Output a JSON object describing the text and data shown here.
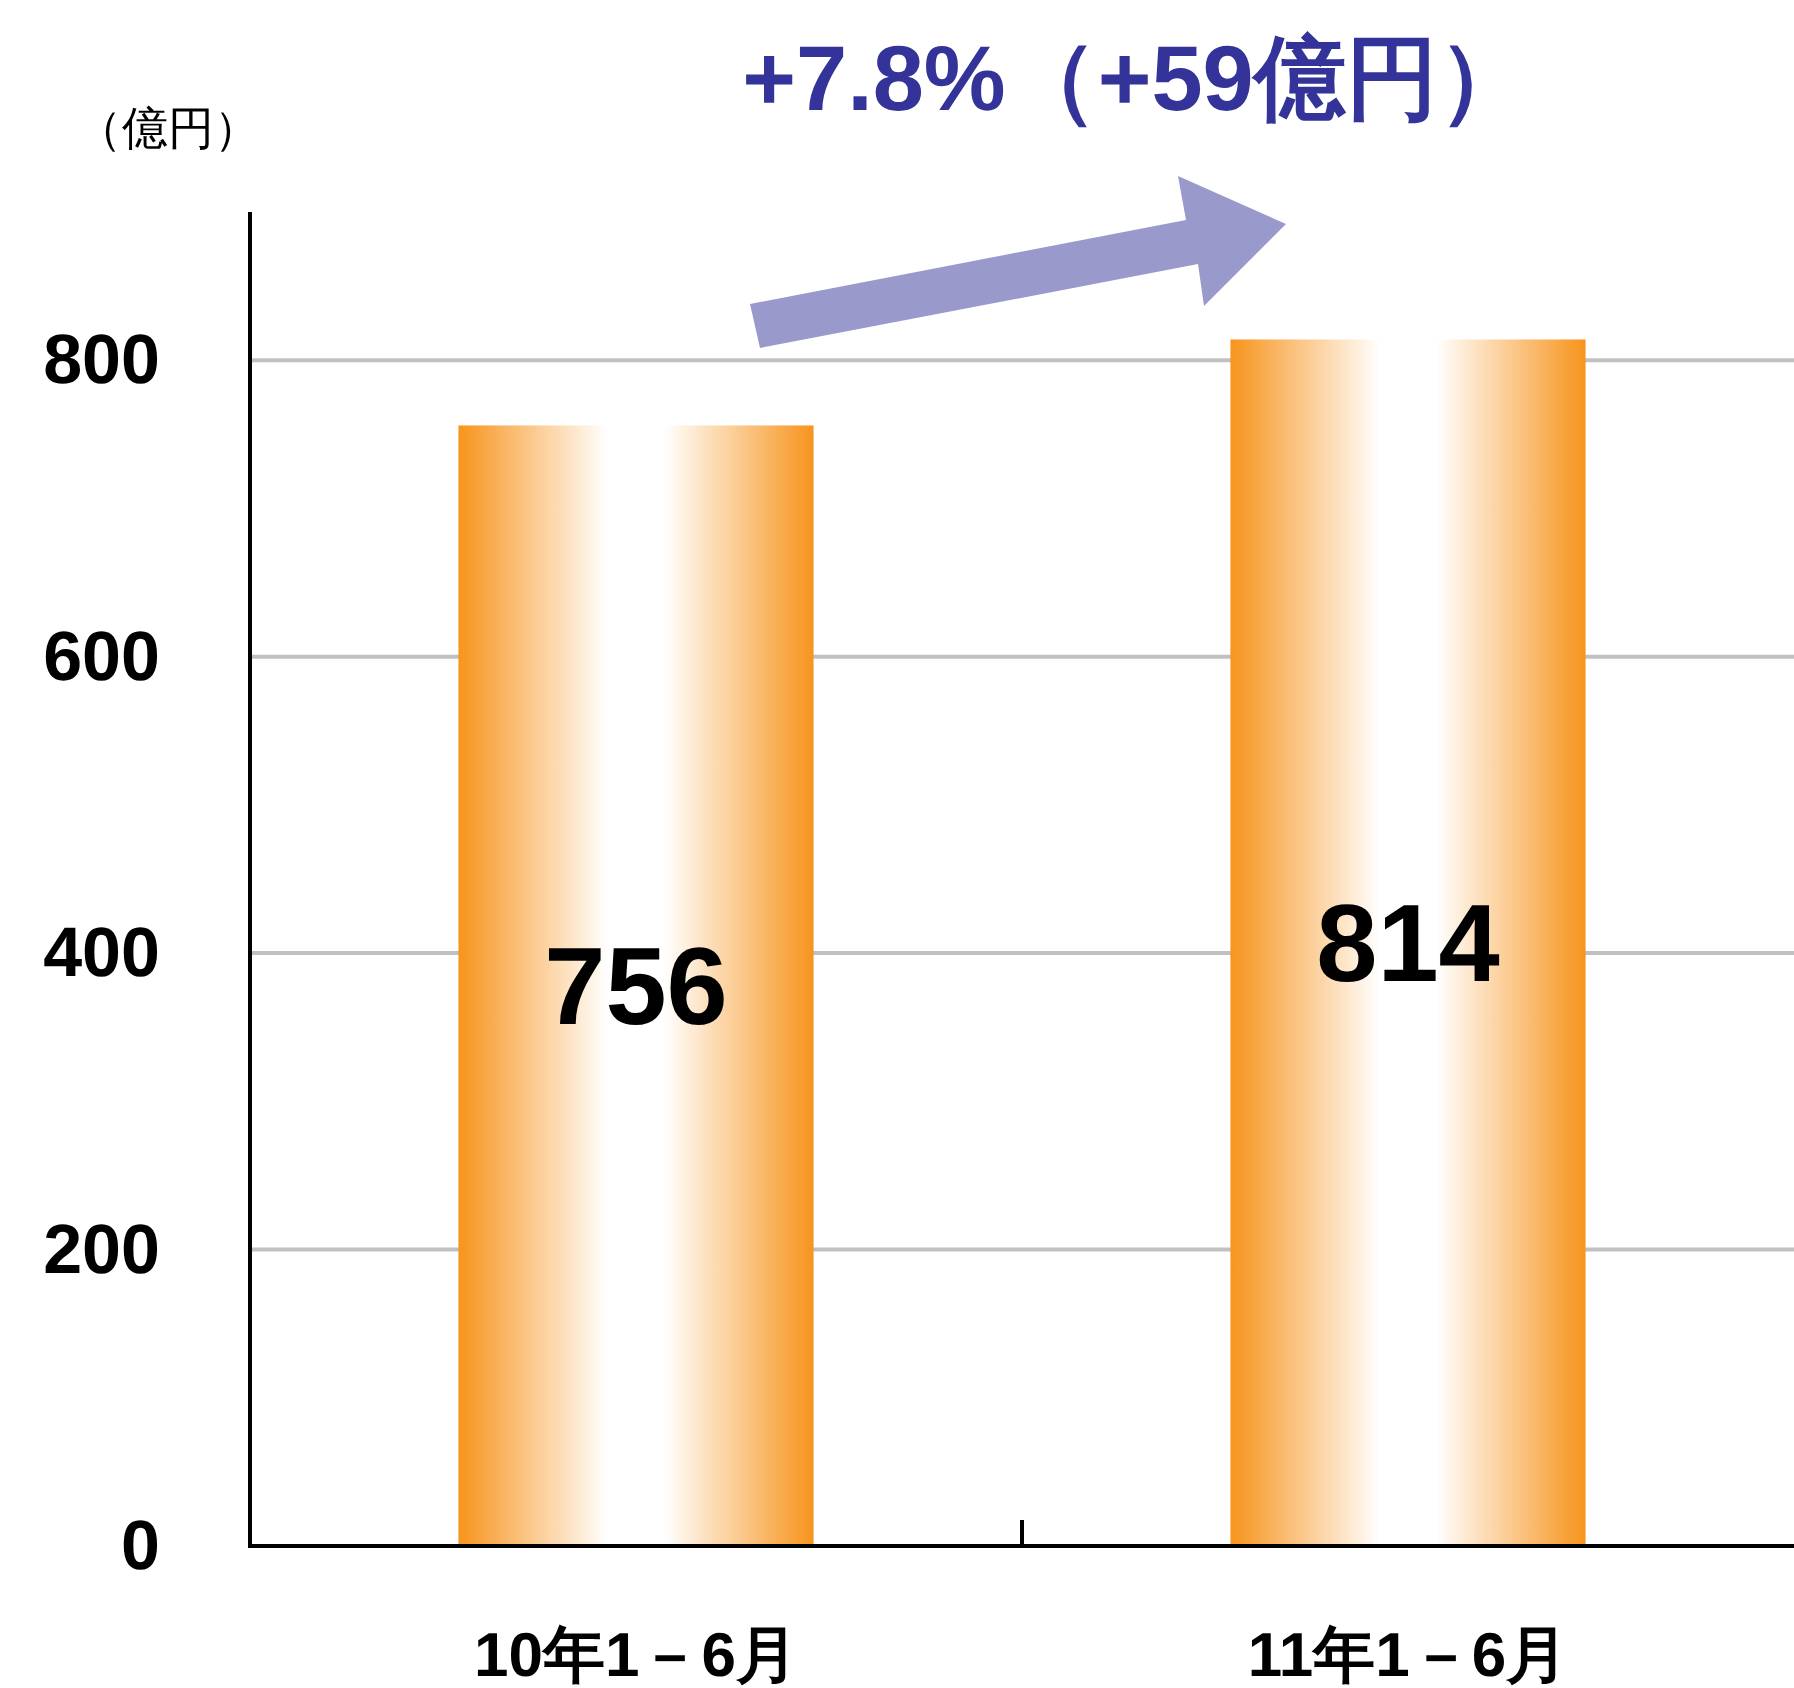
{
  "chart_data": {
    "type": "bar",
    "ylabel": "（億円）",
    "annotations": [
      "+7.8%（+59億円）"
    ],
    "categories": [
      "10年1－6月",
      "11年1－6月"
    ],
    "values": [
      756,
      814
    ],
    "color": "#f7941d",
    "ylim": [
      0,
      900
    ],
    "yticks": [
      0,
      200,
      400,
      600,
      800
    ],
    "grid": "y",
    "data_labels": true
  }
}
